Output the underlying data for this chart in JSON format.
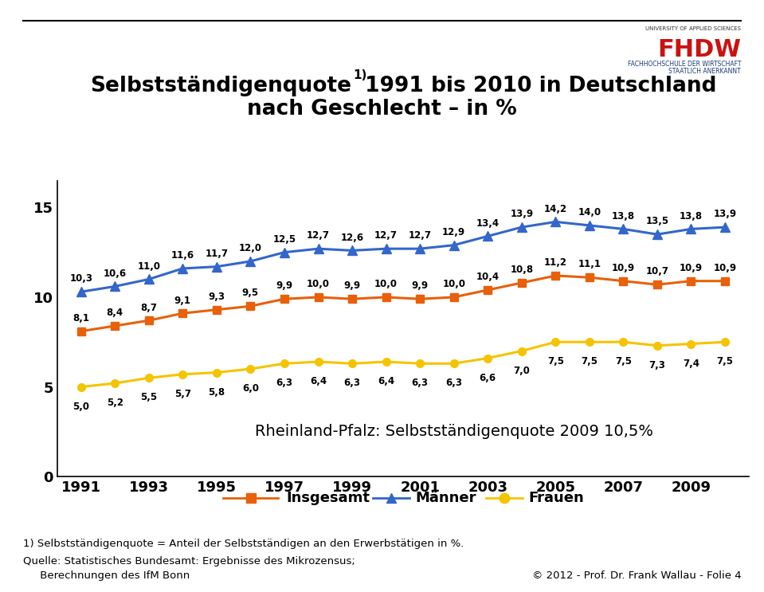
{
  "years": [
    1991,
    1992,
    1993,
    1994,
    1995,
    1996,
    1997,
    1998,
    1999,
    2000,
    2001,
    2002,
    2003,
    2004,
    2005,
    2006,
    2007,
    2008,
    2009,
    2010
  ],
  "insgesamt": [
    8.1,
    8.4,
    8.7,
    9.1,
    9.3,
    9.5,
    9.9,
    10.0,
    9.9,
    10.0,
    9.9,
    10.0,
    10.4,
    10.8,
    11.2,
    11.1,
    10.9,
    10.7,
    10.9,
    10.9
  ],
  "maenner": [
    10.3,
    10.6,
    11.0,
    11.6,
    11.7,
    12.0,
    12.5,
    12.7,
    12.6,
    12.7,
    12.7,
    12.9,
    13.4,
    13.9,
    14.2,
    14.0,
    13.8,
    13.5,
    13.8,
    13.9
  ],
  "frauen": [
    5.0,
    5.2,
    5.5,
    5.7,
    5.8,
    6.0,
    6.3,
    6.4,
    6.3,
    6.4,
    6.3,
    6.3,
    6.6,
    7.0,
    7.5,
    7.5,
    7.5,
    7.3,
    7.4,
    7.5
  ],
  "color_insgesamt": "#E8600A",
  "color_maenner": "#3366CC",
  "color_frauen": "#F5C400",
  "annotation": "Rheinland-Pfalz: Selbstständigenquote 2009 10,5%",
  "footnote1": "1) Selbstständigenquote = Anteil der Selbstständigen an den Erwerbstätigen in %.",
  "footnote2": "Quelle: Statistisches Bundesamt: Ergebnisse des Mikrozensus;",
  "footnote3": "     Berechnungen des IfM Bonn",
  "copyright": "© 2012 - Prof. Dr. Frank Wallau - Folie 4",
  "yticks": [
    0,
    5,
    10,
    15
  ],
  "xtick_labels": [
    "1991",
    "1993",
    "1995",
    "1997",
    "1999",
    "2001",
    "2003",
    "2005",
    "2007",
    "2009"
  ],
  "background_color": "#FFFFFF",
  "label_fontsize": 8.5,
  "tick_fontsize": 13,
  "legend_fontsize": 13,
  "annotation_fontsize": 14,
  "title1_main": "Selbstständigenquote",
  "title1_super": "1)",
  "title1_rest": " 1991 bis 2010 in Deutschland",
  "title2": "nach Geschlecht – in %"
}
